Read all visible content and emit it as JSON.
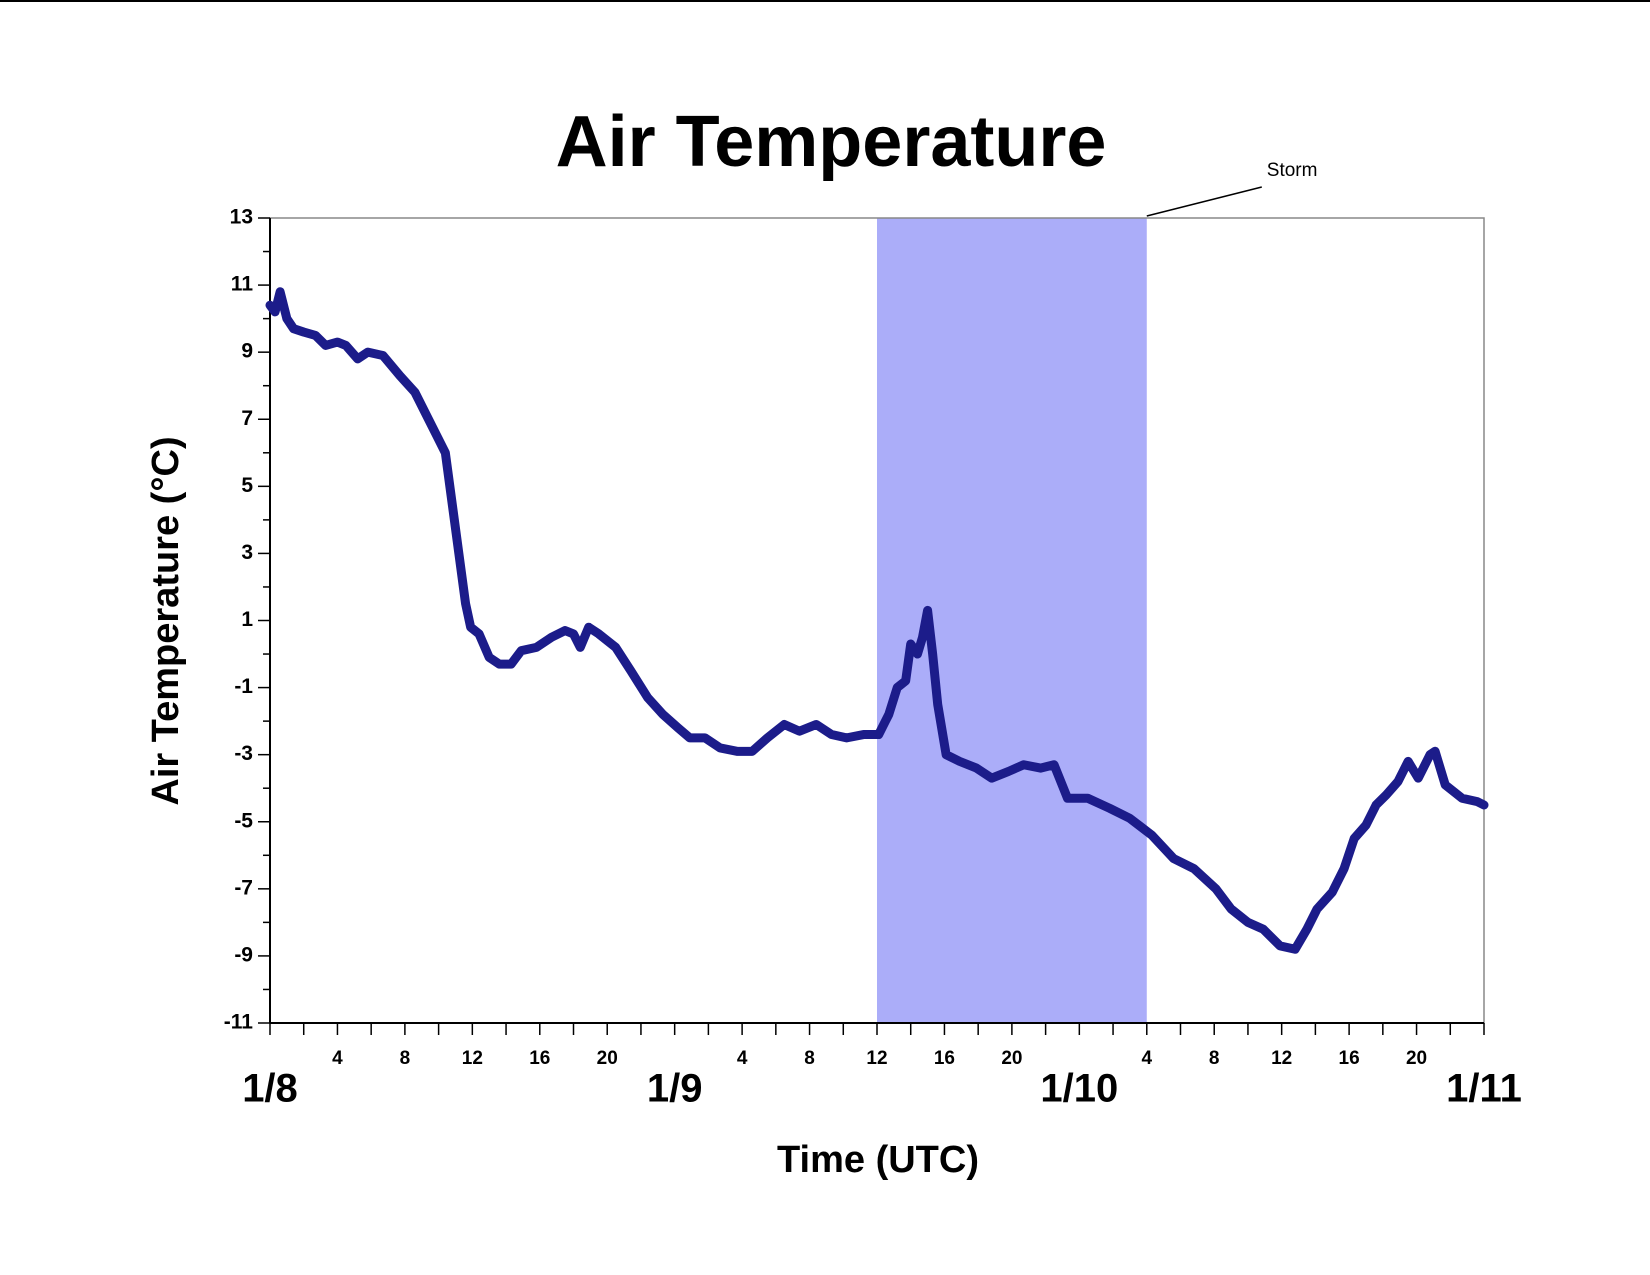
{
  "chart_data": {
    "type": "line",
    "title": "Air Temperature",
    "ylabel": "Air Temperature (°C)",
    "xlabel": "Time (UTC)",
    "x": [
      0,
      0.3,
      0.6,
      1,
      1.4,
      2,
      2.7,
      3.3,
      4,
      4.5,
      5.2,
      5.8,
      6.7,
      7.7,
      8.6,
      9.2,
      9.9,
      10.4,
      10.8,
      11.2,
      11.6,
      11.9,
      12.4,
      13,
      13.6,
      14.3,
      14.9,
      15.8,
      16.7,
      17.5,
      18,
      18.4,
      18.9,
      19.5,
      20.5,
      21.4,
      22.4,
      23.3,
      24.2,
      24.9,
      25.8,
      26.7,
      27.7,
      28.6,
      29.5,
      30.5,
      31.4,
      32.4,
      33.3,
      34.2,
      35.2,
      36.1,
      36.7,
      37.2,
      37.7,
      38,
      38.4,
      38.7,
      39,
      39.3,
      39.6,
      40.1,
      40.9,
      41.9,
      42.8,
      43.8,
      44.7,
      45.7,
      46.5,
      47.3,
      48.5,
      49.8,
      51,
      52.3,
      53.6,
      54.8,
      56.1,
      57,
      58,
      58.9,
      59.9,
      60.8,
      61.5,
      62.1,
      63,
      63.7,
      64.3,
      65,
      65.6,
      66.2,
      66.9,
      67.5,
      68.1,
      68.8,
      69.1,
      69.7,
      70.7,
      71.6,
      72
    ],
    "series": [
      {
        "name": "Air Temperature",
        "color": "#1c1c8a",
        "values": [
          10.4,
          10.2,
          10.8,
          10.0,
          9.7,
          9.6,
          9.5,
          9.2,
          9.3,
          9.2,
          8.8,
          9.0,
          8.9,
          8.3,
          7.8,
          7.2,
          6.5,
          6.0,
          4.5,
          3.0,
          1.5,
          0.8,
          0.6,
          -0.1,
          -0.3,
          -0.3,
          0.1,
          0.2,
          0.5,
          0.7,
          0.6,
          0.2,
          0.8,
          0.6,
          0.2,
          -0.5,
          -1.3,
          -1.8,
          -2.2,
          -2.5,
          -2.5,
          -2.8,
          -2.9,
          -2.9,
          -2.5,
          -2.1,
          -2.3,
          -2.1,
          -2.4,
          -2.5,
          -2.4,
          -2.4,
          -1.8,
          -1.0,
          -0.8,
          0.3,
          0.0,
          0.5,
          1.3,
          0.0,
          -1.5,
          -3.0,
          -3.2,
          -3.4,
          -3.7,
          -3.5,
          -3.3,
          -3.4,
          -3.3,
          -4.3,
          -4.3,
          -4.6,
          -4.9,
          -5.4,
          -6.1,
          -6.4,
          -7.0,
          -7.6,
          -8.0,
          -8.2,
          -8.7,
          -8.8,
          -8.2,
          -7.6,
          -7.1,
          -6.4,
          -5.5,
          -5.1,
          -4.5,
          -4.2,
          -3.8,
          -3.2,
          -3.7,
          -3.0,
          -2.9,
          -3.9,
          -4.3,
          -4.4,
          -4.5
        ]
      }
    ],
    "xlim": [
      0,
      72
    ],
    "xticks": [
      {
        "value": 4,
        "label": "4"
      },
      {
        "value": 8,
        "label": "8"
      },
      {
        "value": 12,
        "label": "12"
      },
      {
        "value": 16,
        "label": "16"
      },
      {
        "value": 20,
        "label": "20"
      },
      {
        "value": 28,
        "label": "4"
      },
      {
        "value": 32,
        "label": "8"
      },
      {
        "value": 36,
        "label": "12"
      },
      {
        "value": 40,
        "label": "16"
      },
      {
        "value": 44,
        "label": "20"
      },
      {
        "value": 52,
        "label": "4"
      },
      {
        "value": 56,
        "label": "8"
      },
      {
        "value": 60,
        "label": "12"
      },
      {
        "value": 64,
        "label": "16"
      },
      {
        "value": 68,
        "label": "20"
      }
    ],
    "xdate_ticks": [
      {
        "value": 0,
        "label": "1/8"
      },
      {
        "value": 24,
        "label": "1/9"
      },
      {
        "value": 48,
        "label": "1/10"
      },
      {
        "value": 72,
        "label": "1/11"
      }
    ],
    "xminor_ticks": [
      2,
      6,
      10,
      14,
      18,
      22,
      26,
      30,
      34,
      38,
      42,
      46,
      50,
      54,
      58,
      62,
      66,
      70
    ],
    "ylim": [
      -11,
      13
    ],
    "yticks": [
      -11,
      -9,
      -7,
      -5,
      -3,
      -1,
      1,
      3,
      5,
      7,
      9,
      11,
      13
    ],
    "yminor_ticks": [
      -10,
      -8,
      -6,
      -4,
      -2,
      0,
      2,
      4,
      6,
      8,
      10,
      12
    ],
    "shaded_spans": [
      {
        "label": "Storm",
        "x": [
          36,
          52
        ],
        "color": "#abadf9"
      }
    ],
    "grid": false
  }
}
